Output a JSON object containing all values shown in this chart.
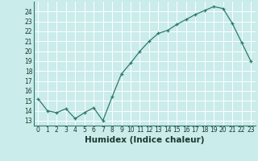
{
  "x": [
    0,
    1,
    2,
    3,
    4,
    5,
    6,
    7,
    8,
    9,
    10,
    11,
    12,
    13,
    14,
    15,
    16,
    17,
    18,
    19,
    20,
    21,
    22,
    23
  ],
  "y": [
    15.2,
    14.0,
    13.8,
    14.2,
    13.2,
    13.8,
    14.3,
    13.0,
    15.4,
    17.7,
    18.8,
    20.0,
    21.0,
    21.8,
    22.1,
    22.7,
    23.2,
    23.7,
    24.1,
    24.5,
    24.3,
    22.8,
    20.9,
    19.0
  ],
  "xlabel": "Humidex (Indice chaleur)",
  "xlim": [
    -0.5,
    23.5
  ],
  "ylim": [
    12.5,
    25.0
  ],
  "yticks": [
    13,
    14,
    15,
    16,
    17,
    18,
    19,
    20,
    21,
    22,
    23,
    24
  ],
  "xticks": [
    0,
    1,
    2,
    3,
    4,
    5,
    6,
    7,
    8,
    9,
    10,
    11,
    12,
    13,
    14,
    15,
    16,
    17,
    18,
    19,
    20,
    21,
    22,
    23
  ],
  "line_color": "#2d7a6a",
  "bg_color": "#caecea",
  "grid_major_color": "#b0d8d4",
  "grid_white_color": "#ffffff",
  "tick_fontsize": 5.5,
  "label_fontsize": 7.5
}
